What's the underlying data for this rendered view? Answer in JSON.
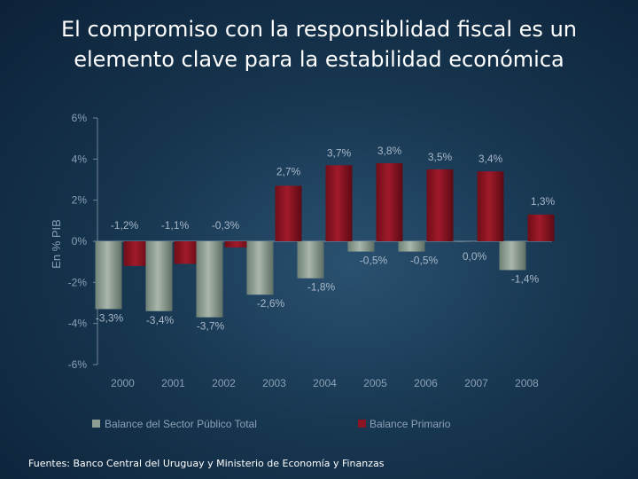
{
  "title": {
    "line1": "El compromiso con la responsiblidad fiscal es un",
    "line2": "elemento clave para la estabilidad económica"
  },
  "source": "Fuentes: Banco Central del Uruguay y Ministerio de Economía y Finanzas",
  "colors": {
    "series1": "#8e9e92",
    "series2": "#8a1422",
    "axis_text": "#8aa0b4",
    "label_text": "#a8b8c8"
  },
  "chart_data": {
    "type": "bar",
    "categories": [
      "2000",
      "2001",
      "2002",
      "2003",
      "2004",
      "2005",
      "2006",
      "2007",
      "2008"
    ],
    "ylabel": "En % PIB",
    "ylim": [
      -6,
      6
    ],
    "yticks": [
      6,
      4,
      2,
      0,
      -2,
      -4,
      -6
    ],
    "ytick_labels": [
      "6%",
      "4%",
      "2%",
      "0%",
      "-2%",
      "-4%",
      "-6%"
    ],
    "legend_position": "bottom",
    "grid": false,
    "series": [
      {
        "name": "Balance del Sector Público Total",
        "values": [
          -3.3,
          -3.4,
          -3.7,
          -2.6,
          -1.8,
          -0.5,
          -0.5,
          0.0,
          -1.4
        ],
        "labels": [
          "-3,3%",
          "-3,4%",
          "-3,7%",
          "-2,6%",
          "-1,8%",
          "-0,5%",
          "-0,5%",
          "0,0%",
          "-1,4%"
        ]
      },
      {
        "name": "Balance Primario",
        "values": [
          -1.2,
          -1.1,
          -0.3,
          2.7,
          3.7,
          3.8,
          3.5,
          3.4,
          1.3
        ],
        "labels": [
          "-1,2%",
          "-1,1%",
          "-0,3%",
          "2,7%",
          "3,7%",
          "3,8%",
          "3,5%",
          "3,4%",
          "1,3%"
        ]
      }
    ]
  }
}
